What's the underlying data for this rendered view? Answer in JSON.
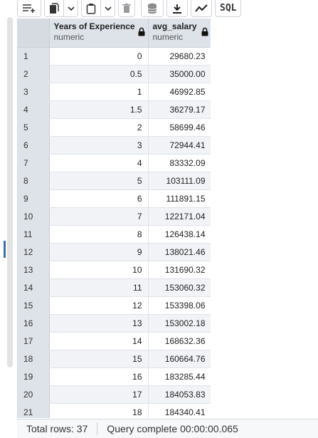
{
  "toolbar": {
    "buttons": [
      {
        "name": "add-row-icon"
      },
      {
        "name": "copy-icon"
      },
      {
        "name": "chevron-down-icon"
      },
      {
        "name": "paste-icon"
      },
      {
        "name": "chevron-down-icon"
      },
      {
        "name": "delete-icon"
      },
      {
        "name": "save-data-icon"
      },
      {
        "name": "download-icon"
      },
      {
        "name": "graph-icon"
      }
    ],
    "sql_label": "SQL"
  },
  "grid": {
    "columns": [
      {
        "name": "Years of Experience",
        "type": "numeric"
      },
      {
        "name": "avg_salary",
        "type": "numeric"
      }
    ],
    "rows": [
      {
        "n": "1",
        "years": "0",
        "salary": "29680.23"
      },
      {
        "n": "2",
        "years": "0.5",
        "salary": "35000.00"
      },
      {
        "n": "3",
        "years": "1",
        "salary": "46992.85"
      },
      {
        "n": "4",
        "years": "1.5",
        "salary": "36279.17"
      },
      {
        "n": "5",
        "years": "2",
        "salary": "58699.46"
      },
      {
        "n": "6",
        "years": "3",
        "salary": "72944.41"
      },
      {
        "n": "7",
        "years": "4",
        "salary": "83332.09"
      },
      {
        "n": "8",
        "years": "5",
        "salary": "103111.09"
      },
      {
        "n": "9",
        "years": "6",
        "salary": "111891.15"
      },
      {
        "n": "10",
        "years": "7",
        "salary": "122171.04"
      },
      {
        "n": "11",
        "years": "8",
        "salary": "126438.14"
      },
      {
        "n": "12",
        "years": "9",
        "salary": "138021.46"
      },
      {
        "n": "13",
        "years": "10",
        "salary": "131690.32"
      },
      {
        "n": "14",
        "years": "11",
        "salary": "153060.32"
      },
      {
        "n": "15",
        "years": "12",
        "salary": "153398.06"
      },
      {
        "n": "16",
        "years": "13",
        "salary": "153002.18"
      },
      {
        "n": "17",
        "years": "14",
        "salary": "168632.36"
      },
      {
        "n": "18",
        "years": "15",
        "salary": "160664.76"
      },
      {
        "n": "19",
        "years": "16",
        "salary": "183285.44"
      },
      {
        "n": "20",
        "years": "17",
        "salary": "184053.83"
      },
      {
        "n": "21",
        "years": "18",
        "salary": "184340.41"
      }
    ]
  },
  "status": {
    "total_rows": "Total rows: 37",
    "query": "Query complete 00:00:00.065"
  }
}
